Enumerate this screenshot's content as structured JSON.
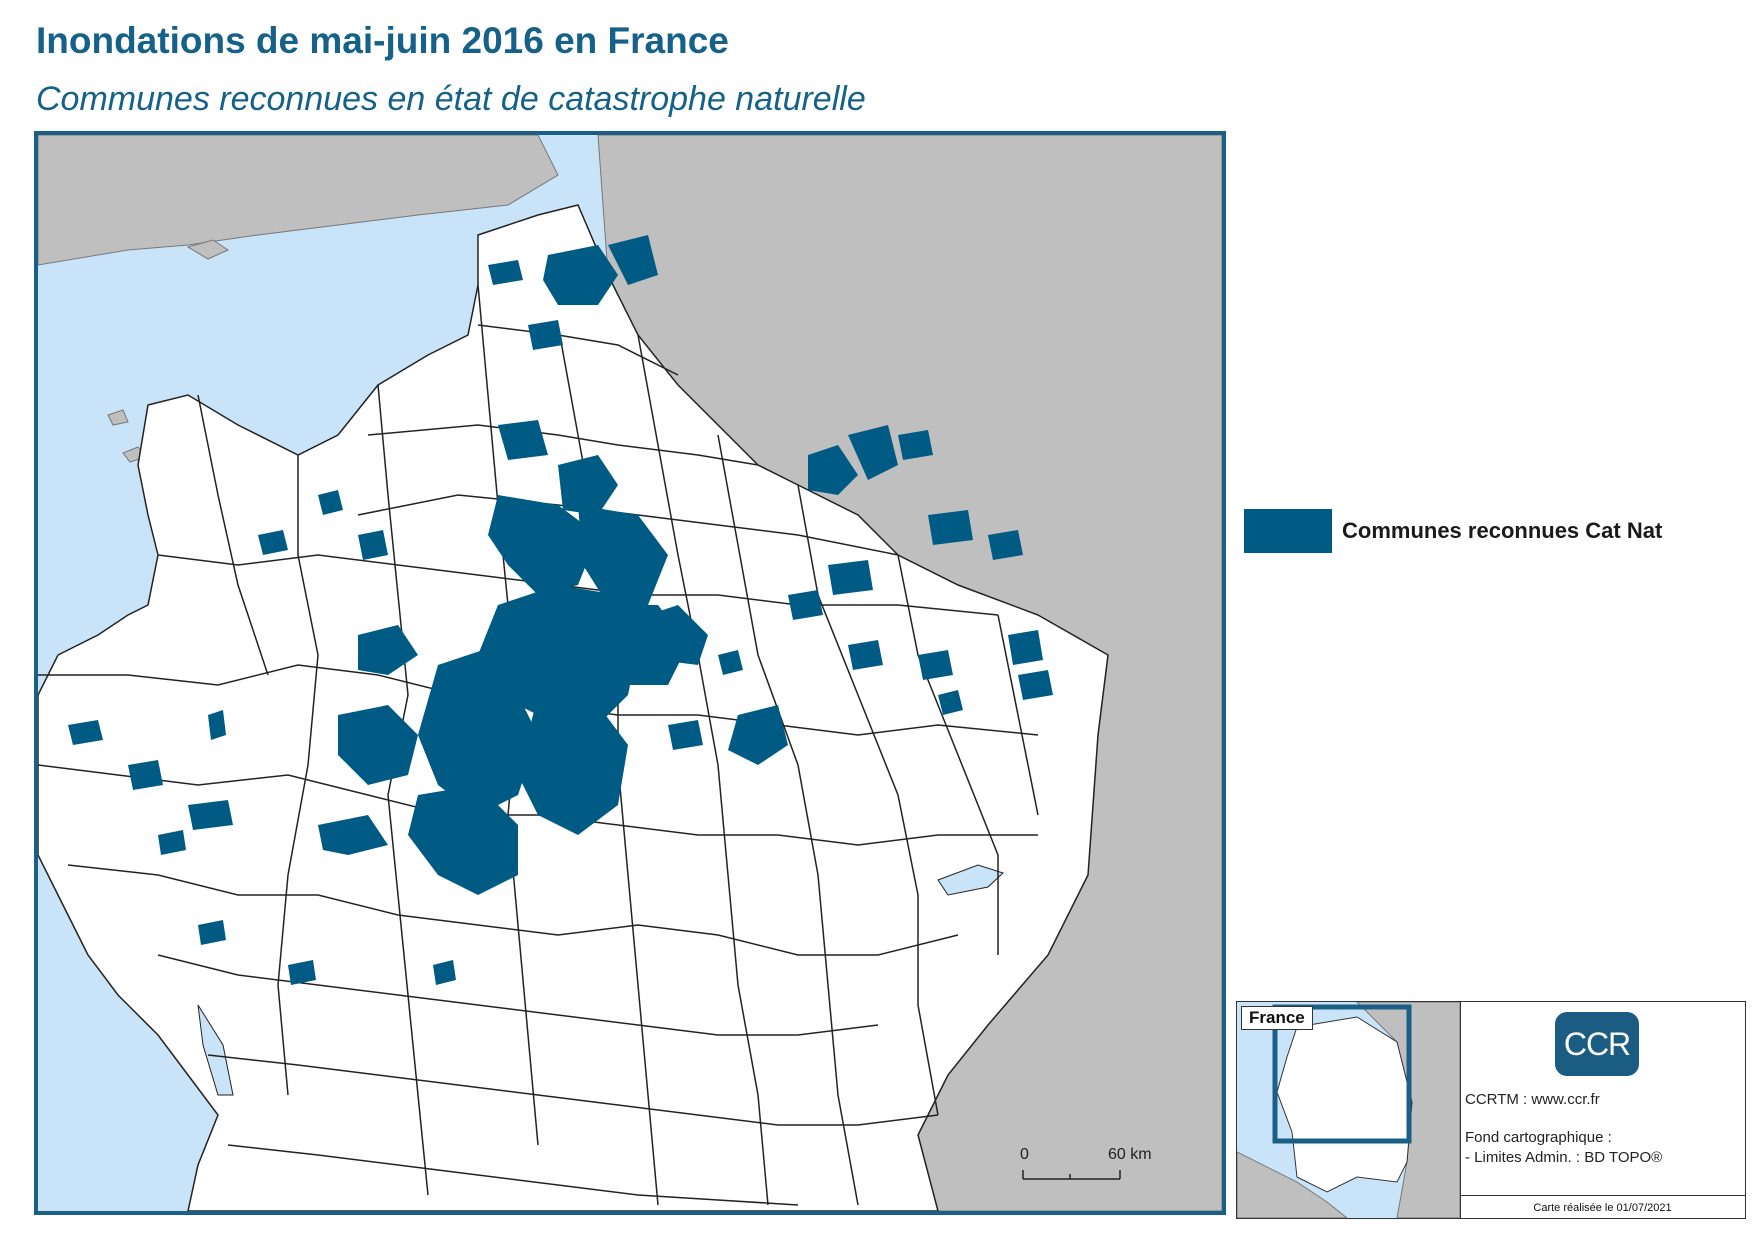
{
  "header": {
    "title": "Inondations de mai-juin 2016 en France",
    "subtitle": "Communes reconnues en état de catastrophe naturelle"
  },
  "legend": {
    "label": "Communes reconnues Cat Nat",
    "color": "#005b84"
  },
  "scale_bar": {
    "start": "0",
    "end": "60 km"
  },
  "inset": {
    "label": "France"
  },
  "branding": {
    "logo_text": "CCR",
    "site": "CCRTM : www.ccr.fr",
    "basemap_heading": "Fond cartographique :",
    "basemap_source": "- Limites Admin. : BD TOPO®",
    "date": "Carte réalisée le 01/07/2021"
  },
  "colors": {
    "sea": "#c9e4f8",
    "foreign_land": "#bfbfbf",
    "france_land": "#ffffff",
    "affected": "#005b84",
    "frame": "#1a5f86",
    "title": "#15618a"
  }
}
